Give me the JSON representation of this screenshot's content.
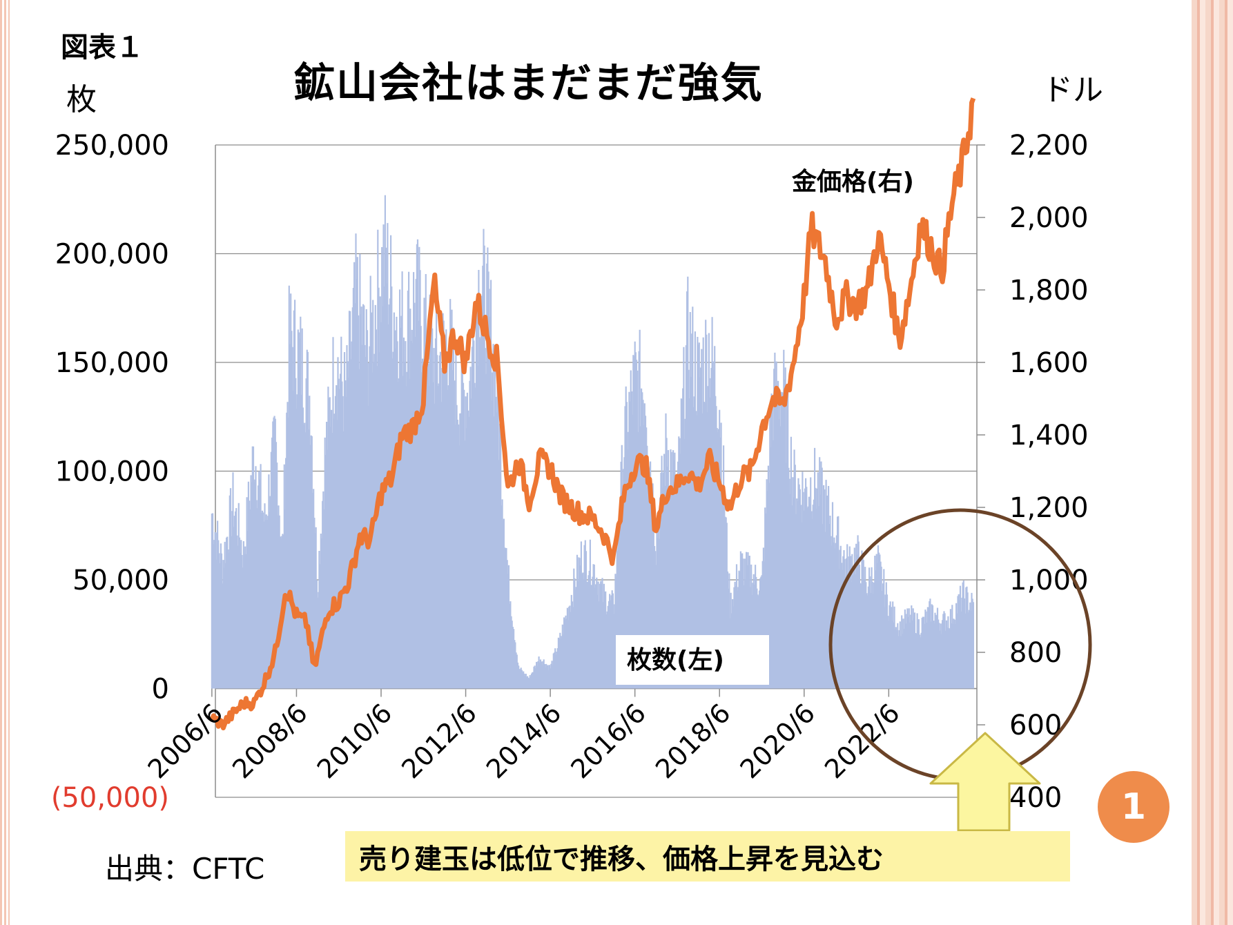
{
  "slide": {
    "figure_label": "図表１",
    "title": "鉱山会社はまだまだ強気",
    "left_unit": "枚",
    "right_unit": "ドル",
    "source": "出典：CFTC",
    "callout": "売り建玉は低位で推移、価格上昇を見込む",
    "slide_number": "1",
    "colors": {
      "bars": "#b0c0e4",
      "line": "#ed7633",
      "circle": "#6b4327",
      "arrow_fill": "#fcf6a0",
      "arrow_stroke": "#c9b845",
      "callout_bg": "#fdf3a6",
      "negative_label": "#e13c2e",
      "slide_number_bg": "#ef8c4b"
    }
  },
  "chart_data": {
    "type": "bar+line",
    "x_tick_labels": [
      "2006/6",
      "2008/6",
      "2010/6",
      "2012/6",
      "2014/6",
      "2016/6",
      "2018/6",
      "2020/6",
      "2022/6"
    ],
    "x_range": [
      "2006-06",
      "2024-06"
    ],
    "y_left": {
      "ylim": [
        -50000,
        250000
      ],
      "ticks": [
        -50000,
        0,
        50000,
        100000,
        150000,
        200000,
        250000
      ],
      "tick_labels": [
        "(50,000)",
        "0",
        "50,000",
        "100,000",
        "150,000",
        "200,000",
        "250,000"
      ]
    },
    "y_right": {
      "ylim": [
        400,
        2200
      ],
      "ticks": [
        400,
        600,
        800,
        1000,
        1200,
        1400,
        1600,
        1800,
        2000,
        2200
      ],
      "tick_labels": [
        "400",
        "600",
        "800",
        "1,000",
        "1,200",
        "1,400",
        "1,600",
        "1,800",
        "2,000",
        "2,200"
      ]
    },
    "grid": "horizontal",
    "series": [
      {
        "name": "枚数(左)",
        "type": "area",
        "axis": "left",
        "points": [
          [
            "2006-06",
            85000
          ],
          [
            "2006-09",
            60000
          ],
          [
            "2006-12",
            90000
          ],
          [
            "2007-03",
            65000
          ],
          [
            "2007-06",
            115000
          ],
          [
            "2007-09",
            80000
          ],
          [
            "2007-12",
            120000
          ],
          [
            "2008-02",
            65000
          ],
          [
            "2008-04",
            170000
          ],
          [
            "2008-07",
            160000
          ],
          [
            "2008-10",
            140000
          ],
          [
            "2008-12",
            50000
          ],
          [
            "2009-02",
            110000
          ],
          [
            "2009-05",
            160000
          ],
          [
            "2009-08",
            140000
          ],
          [
            "2009-11",
            190000
          ],
          [
            "2010-02",
            160000
          ],
          [
            "2010-05",
            190000
          ],
          [
            "2010-07",
            210000
          ],
          [
            "2010-10",
            180000
          ],
          [
            "2011-01",
            175000
          ],
          [
            "2011-04",
            190000
          ],
          [
            "2011-07",
            170000
          ],
          [
            "2011-10",
            155000
          ],
          [
            "2012-01",
            170000
          ],
          [
            "2012-04",
            140000
          ],
          [
            "2012-07",
            145000
          ],
          [
            "2012-10",
            200000
          ],
          [
            "2013-01",
            175000
          ],
          [
            "2013-03",
            140000
          ],
          [
            "2013-06",
            55000
          ],
          [
            "2013-09",
            10000
          ],
          [
            "2013-12",
            5000
          ],
          [
            "2014-03",
            15000
          ],
          [
            "2014-06",
            10000
          ],
          [
            "2014-09",
            25000
          ],
          [
            "2014-12",
            45000
          ],
          [
            "2015-03",
            65000
          ],
          [
            "2015-06",
            60000
          ],
          [
            "2015-09",
            45000
          ],
          [
            "2015-12",
            40000
          ],
          [
            "2016-03",
            120000
          ],
          [
            "2016-06",
            150000
          ],
          [
            "2016-09",
            145000
          ],
          [
            "2016-12",
            70000
          ],
          [
            "2017-03",
            120000
          ],
          [
            "2017-06",
            95000
          ],
          [
            "2017-09",
            170000
          ],
          [
            "2017-12",
            150000
          ],
          [
            "2018-03",
            165000
          ],
          [
            "2018-06",
            140000
          ],
          [
            "2018-09",
            40000
          ],
          [
            "2018-12",
            60000
          ],
          [
            "2019-03",
            55000
          ],
          [
            "2019-06",
            50000
          ],
          [
            "2019-09",
            140000
          ],
          [
            "2019-12",
            145000
          ],
          [
            "2020-03",
            100000
          ],
          [
            "2020-06",
            95000
          ],
          [
            "2020-09",
            100000
          ],
          [
            "2020-12",
            90000
          ],
          [
            "2021-03",
            75000
          ],
          [
            "2021-06",
            60000
          ],
          [
            "2021-09",
            65000
          ],
          [
            "2021-12",
            50000
          ],
          [
            "2022-03",
            60000
          ],
          [
            "2022-06",
            40000
          ],
          [
            "2022-09",
            30000
          ],
          [
            "2022-12",
            35000
          ],
          [
            "2023-03",
            30000
          ],
          [
            "2023-06",
            38000
          ],
          [
            "2023-09",
            32000
          ],
          [
            "2023-12",
            35000
          ],
          [
            "2024-03",
            45000
          ],
          [
            "2024-06",
            40000
          ]
        ]
      },
      {
        "name": "金価格(右)",
        "type": "line",
        "axis": "right",
        "points": [
          [
            "2006-06",
            620
          ],
          [
            "2006-09",
            600
          ],
          [
            "2006-12",
            630
          ],
          [
            "2007-03",
            660
          ],
          [
            "2007-06",
            660
          ],
          [
            "2007-09",
            720
          ],
          [
            "2007-12",
            800
          ],
          [
            "2008-03",
            980
          ],
          [
            "2008-06",
            900
          ],
          [
            "2008-09",
            880
          ],
          [
            "2008-11",
            750
          ],
          [
            "2009-03",
            920
          ],
          [
            "2009-06",
            940
          ],
          [
            "2009-09",
            1000
          ],
          [
            "2009-12",
            1120
          ],
          [
            "2010-03",
            1110
          ],
          [
            "2010-06",
            1240
          ],
          [
            "2010-09",
            1280
          ],
          [
            "2010-12",
            1400
          ],
          [
            "2011-03",
            1420
          ],
          [
            "2011-06",
            1500
          ],
          [
            "2011-09",
            1820
          ],
          [
            "2011-12",
            1600
          ],
          [
            "2012-03",
            1680
          ],
          [
            "2012-06",
            1600
          ],
          [
            "2012-09",
            1770
          ],
          [
            "2012-12",
            1680
          ],
          [
            "2013-03",
            1600
          ],
          [
            "2013-06",
            1250
          ],
          [
            "2013-09",
            1330
          ],
          [
            "2013-12",
            1220
          ],
          [
            "2014-03",
            1330
          ],
          [
            "2014-06",
            1310
          ],
          [
            "2014-09",
            1230
          ],
          [
            "2014-12",
            1200
          ],
          [
            "2015-03",
            1180
          ],
          [
            "2015-06",
            1170
          ],
          [
            "2015-09",
            1130
          ],
          [
            "2015-12",
            1060
          ],
          [
            "2016-03",
            1240
          ],
          [
            "2016-06",
            1320
          ],
          [
            "2016-09",
            1320
          ],
          [
            "2016-12",
            1140
          ],
          [
            "2017-03",
            1250
          ],
          [
            "2017-06",
            1260
          ],
          [
            "2017-09",
            1300
          ],
          [
            "2017-12",
            1260
          ],
          [
            "2018-03",
            1330
          ],
          [
            "2018-06",
            1270
          ],
          [
            "2018-09",
            1200
          ],
          [
            "2018-12",
            1280
          ],
          [
            "2019-03",
            1300
          ],
          [
            "2019-06",
            1420
          ],
          [
            "2019-09",
            1500
          ],
          [
            "2019-12",
            1480
          ],
          [
            "2020-03",
            1600
          ],
          [
            "2020-06",
            1780
          ],
          [
            "2020-08",
            1970
          ],
          [
            "2020-12",
            1880
          ],
          [
            "2021-03",
            1720
          ],
          [
            "2021-06",
            1780
          ],
          [
            "2021-09",
            1760
          ],
          [
            "2021-12",
            1800
          ],
          [
            "2022-03",
            1950
          ],
          [
            "2022-06",
            1820
          ],
          [
            "2022-09",
            1660
          ],
          [
            "2022-12",
            1800
          ],
          [
            "2023-03",
            1980
          ],
          [
            "2023-06",
            1920
          ],
          [
            "2023-09",
            1850
          ],
          [
            "2023-12",
            2040
          ],
          [
            "2024-03",
            2150
          ],
          [
            "2024-06",
            2320
          ]
        ]
      }
    ]
  }
}
